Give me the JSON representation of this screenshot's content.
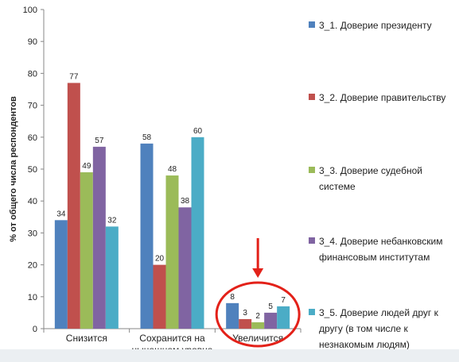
{
  "chart_data": {
    "type": "bar",
    "ylabel": "% от общего числа респондентов",
    "ylim": [
      0,
      100
    ],
    "yticks": [
      0,
      10,
      20,
      30,
      40,
      50,
      60,
      70,
      80,
      90,
      100
    ],
    "categories": [
      "Снизится",
      "Сохранится на нынешнем уровне",
      "Увеличится"
    ],
    "category_lines": [
      [
        "Снизится"
      ],
      [
        "Сохранится на",
        "нынешнем уровне"
      ],
      [
        "Увеличится"
      ]
    ],
    "series": [
      {
        "name": "3_1. Доверие президенту",
        "values": [
          34,
          58,
          8
        ],
        "color": "#4f81bd"
      },
      {
        "name": "3_2. Доверие правительству",
        "values": [
          77,
          20,
          3
        ],
        "color": "#c0504d"
      },
      {
        "name": "3_3. Доверие судебной системе",
        "values": [
          49,
          48,
          2
        ],
        "color": "#9bbb59"
      },
      {
        "name": "3_4. Доверие небанковским финансовым институтам",
        "values": [
          57,
          38,
          5
        ],
        "color": "#8064a2"
      },
      {
        "name": "3_5. Доверие людей друг к другу (в том числе к незнакомым людям)",
        "values": [
          32,
          60,
          7
        ],
        "color": "#4bacc6"
      }
    ],
    "grid": false,
    "legend_position": "right",
    "annotation": {
      "highlight_category": "Увеличится",
      "color": "#e32119"
    }
  }
}
